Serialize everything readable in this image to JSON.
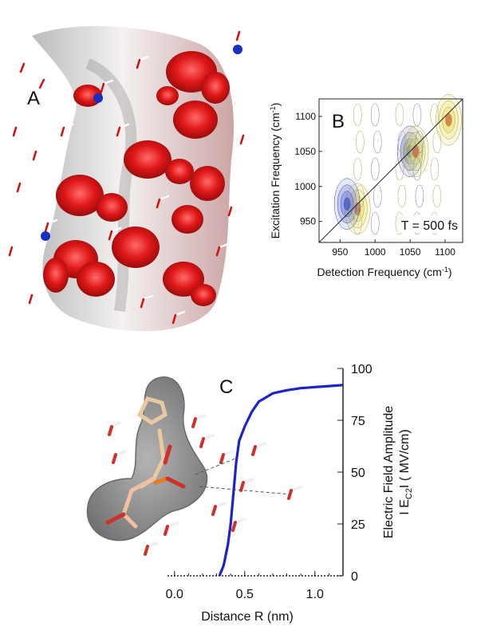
{
  "panels": {
    "a": {
      "letter": "A"
    },
    "b": {
      "letter": "B",
      "time_label": "T = 500 fs"
    },
    "c": {
      "letter": "C"
    }
  },
  "chart_data": [
    {
      "panel": "B",
      "type": "heatmap",
      "xlabel": "Detection Frequency (cm",
      "xlabel_sup": "-1",
      "xlabel_end": ")",
      "ylabel": "Excitation Frequency (cm",
      "ylabel_sup": "-1",
      "ylabel_end": ")",
      "xlim": [
        920,
        1125
      ],
      "ylim": [
        920,
        1125
      ],
      "xticks": [
        950,
        1000,
        1050,
        1100
      ],
      "yticks": [
        950,
        1000,
        1050,
        1100
      ],
      "annotation": "T = 500 fs",
      "diagonal": true,
      "features": [
        {
          "x": 1050,
          "y": 1050,
          "sign": "negative"
        },
        {
          "x": 1058,
          "y": 1050,
          "sign": "positive"
        },
        {
          "x": 1105,
          "y": 1095,
          "sign": "positive"
        },
        {
          "x": 975,
          "y": 968,
          "sign": "positive"
        },
        {
          "x": 960,
          "y": 975,
          "sign": "negative"
        }
      ]
    },
    {
      "panel": "C",
      "type": "line",
      "xlabel": "Distance R (nm)",
      "ylabel": "Electric Field Amplitude",
      "ylabel2": "I E",
      "ylabel2_sub": "C2",
      "ylabel2_end": "I  ( MV/cm)",
      "xlim": [
        -0.05,
        1.2
      ],
      "ylim": [
        0,
        100
      ],
      "xticks": [
        0.0,
        0.5,
        1.0
      ],
      "yticks": [
        0,
        25,
        50,
        75,
        100
      ],
      "series": [
        {
          "color": "#1c23c8",
          "x": [
            0.32,
            0.35,
            0.38,
            0.4,
            0.42,
            0.44,
            0.46,
            0.5,
            0.55,
            0.6,
            0.7,
            0.8,
            0.9,
            1.0,
            1.1,
            1.2
          ],
          "y": [
            0,
            5,
            15,
            25,
            40,
            55,
            65,
            72,
            79,
            84,
            88,
            89.5,
            90.5,
            91,
            91.5,
            92
          ]
        }
      ]
    }
  ]
}
